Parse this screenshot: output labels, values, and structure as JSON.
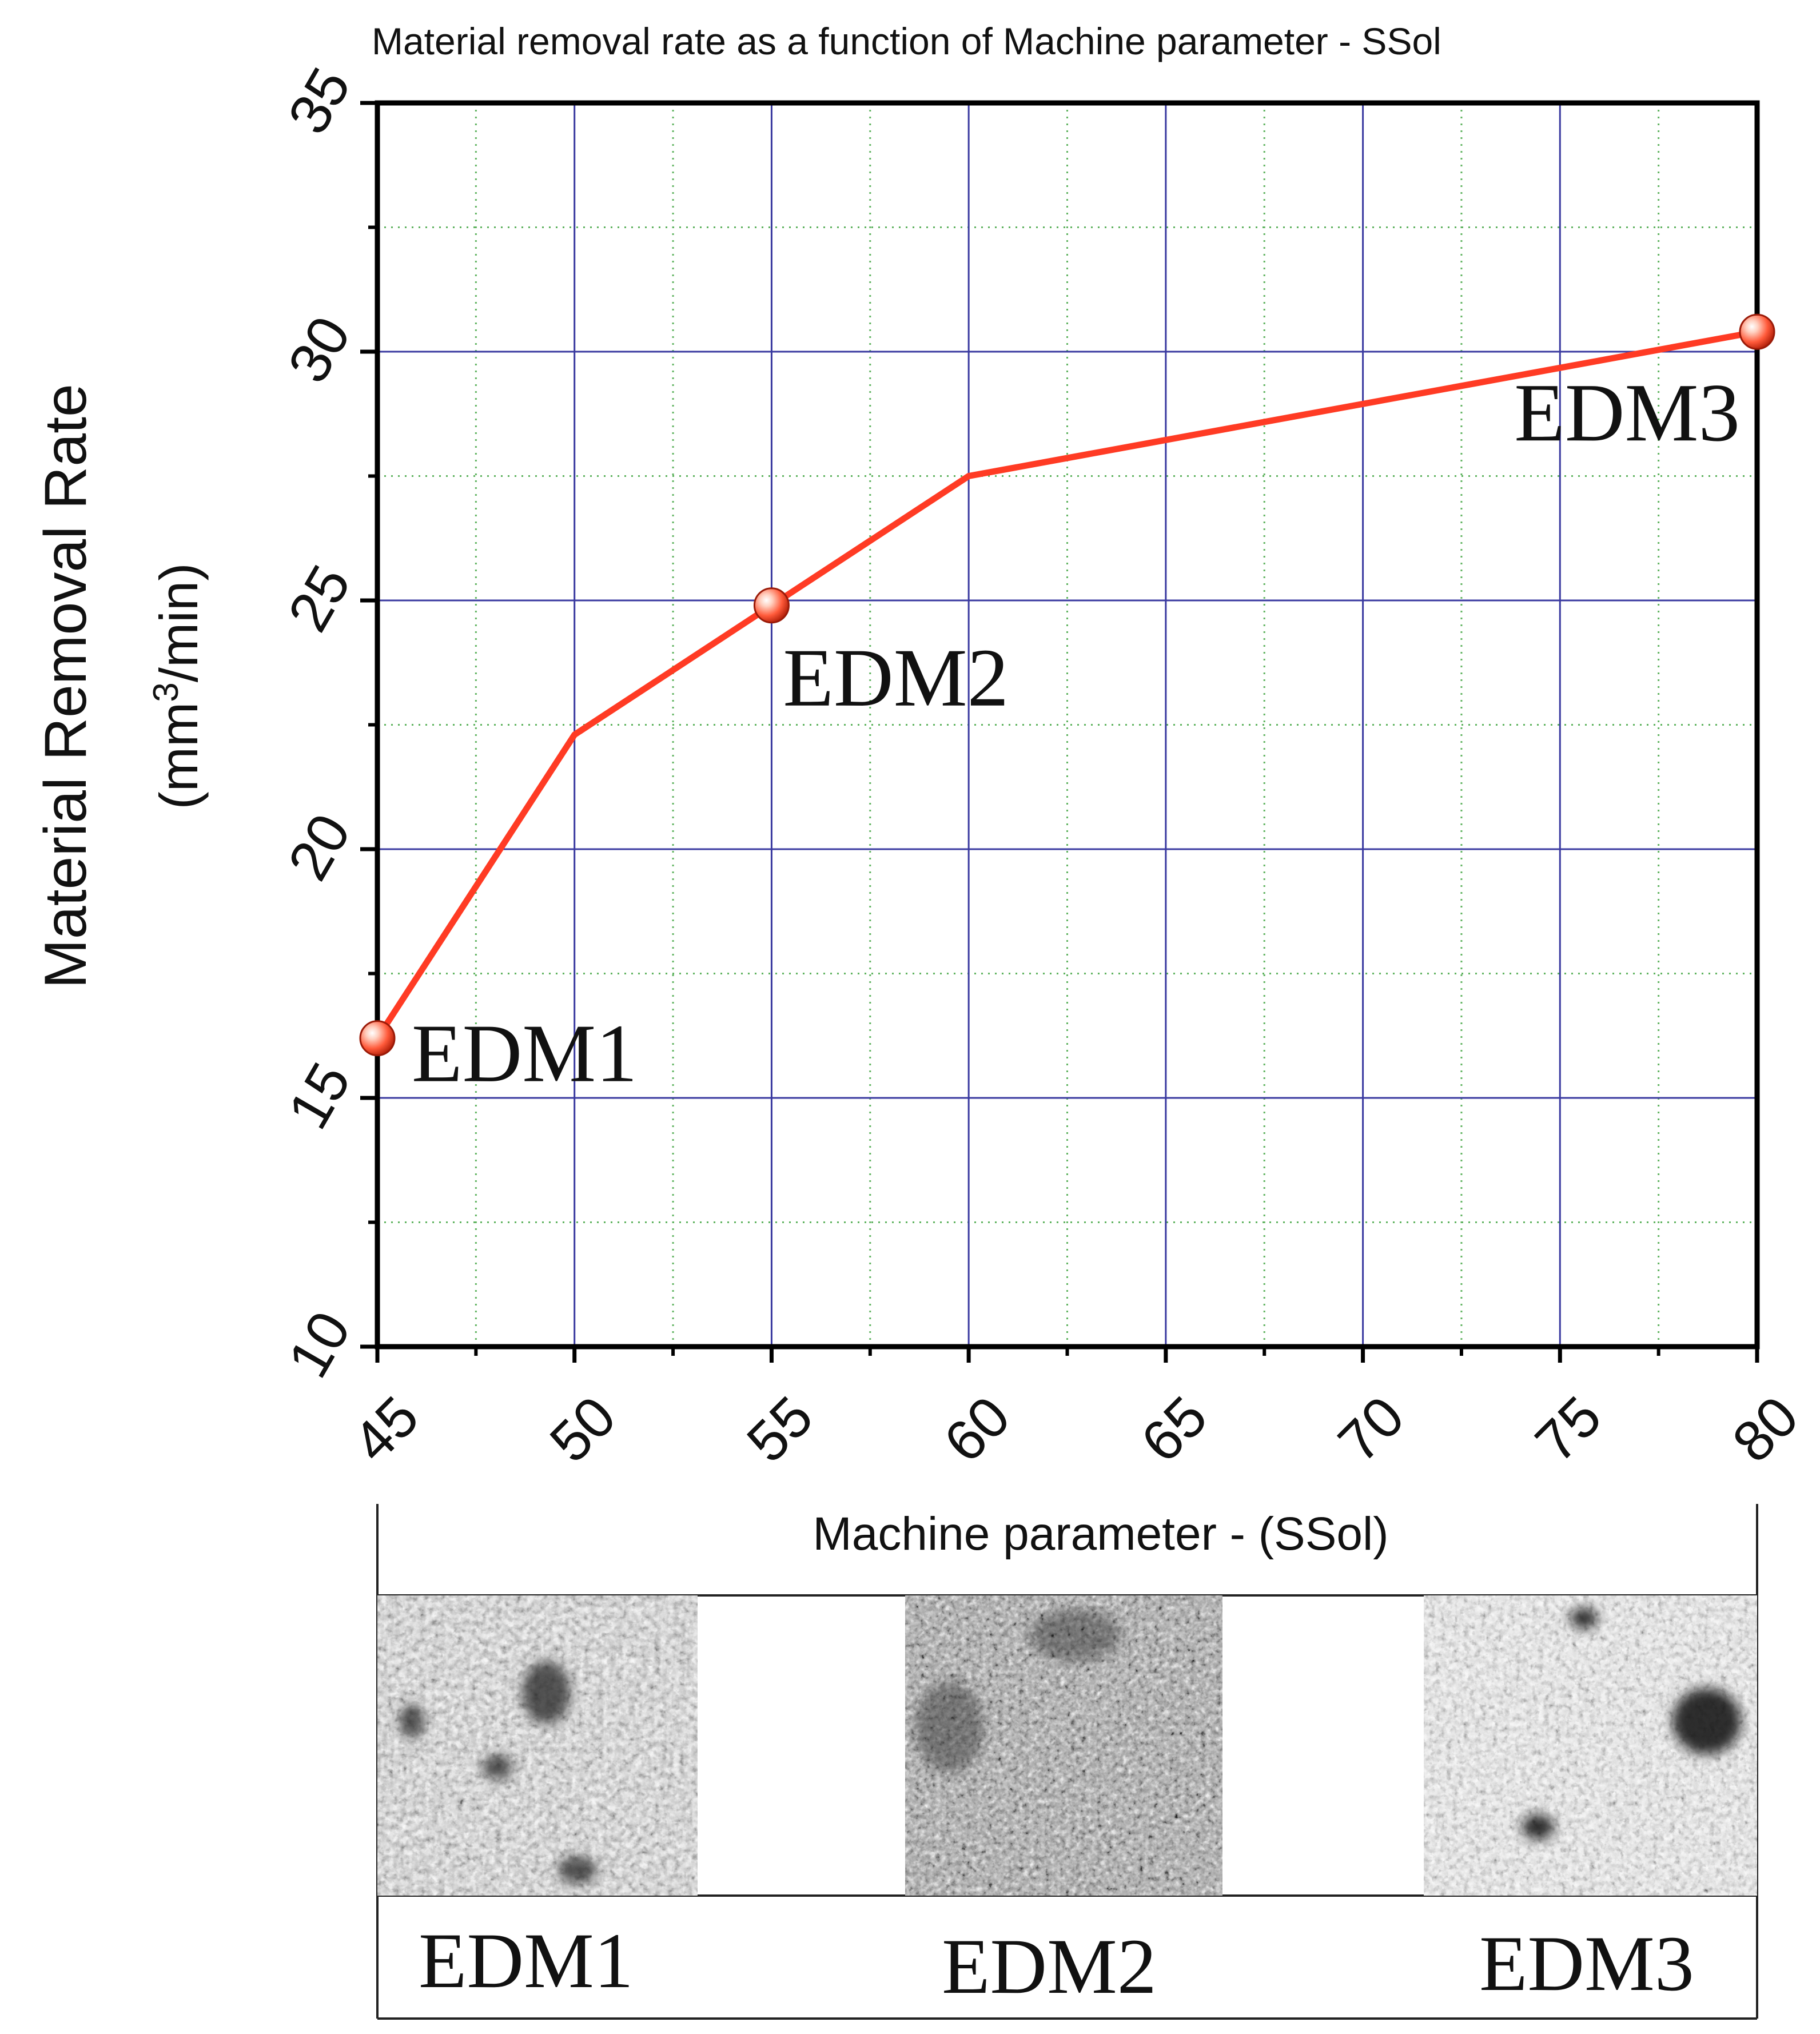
{
  "chart_data": {
    "type": "line",
    "title": "Material removal rate as a function of Machine parameter - SSol",
    "xlabel": "Machine parameter - (SSol)",
    "ylabel_line1": "Material Removal Rate",
    "ylabel_line2_prefix": "(mm",
    "ylabel_line2_sup": "3",
    "ylabel_line2_suffix": "/min)",
    "xlim": [
      45,
      80
    ],
    "ylim": [
      10,
      35
    ],
    "x_ticks": [
      45,
      50,
      55,
      60,
      65,
      70,
      75,
      80
    ],
    "y_ticks": [
      10,
      15,
      20,
      25,
      30,
      35
    ],
    "grid": true,
    "series": [
      {
        "color": "#ff3b24",
        "x": [
          45,
          50,
          55,
          60,
          80
        ],
        "y": [
          16.2,
          22.3,
          24.9,
          27.5,
          30.4
        ]
      }
    ],
    "markers": [
      {
        "label": "EDM1",
        "x": 45,
        "y": 16.2
      },
      {
        "label": "EDM2",
        "x": 55,
        "y": 24.9
      },
      {
        "label": "EDM3",
        "x": 80,
        "y": 30.4
      }
    ]
  },
  "micrographs": [
    {
      "label": "EDM1"
    },
    {
      "label": "EDM2"
    },
    {
      "label": "EDM3"
    }
  ],
  "colors": {
    "line": "#ff3b24",
    "major_grid": "#3a3aa0",
    "minor_grid": "#5fb35f",
    "axis": "#000000"
  }
}
